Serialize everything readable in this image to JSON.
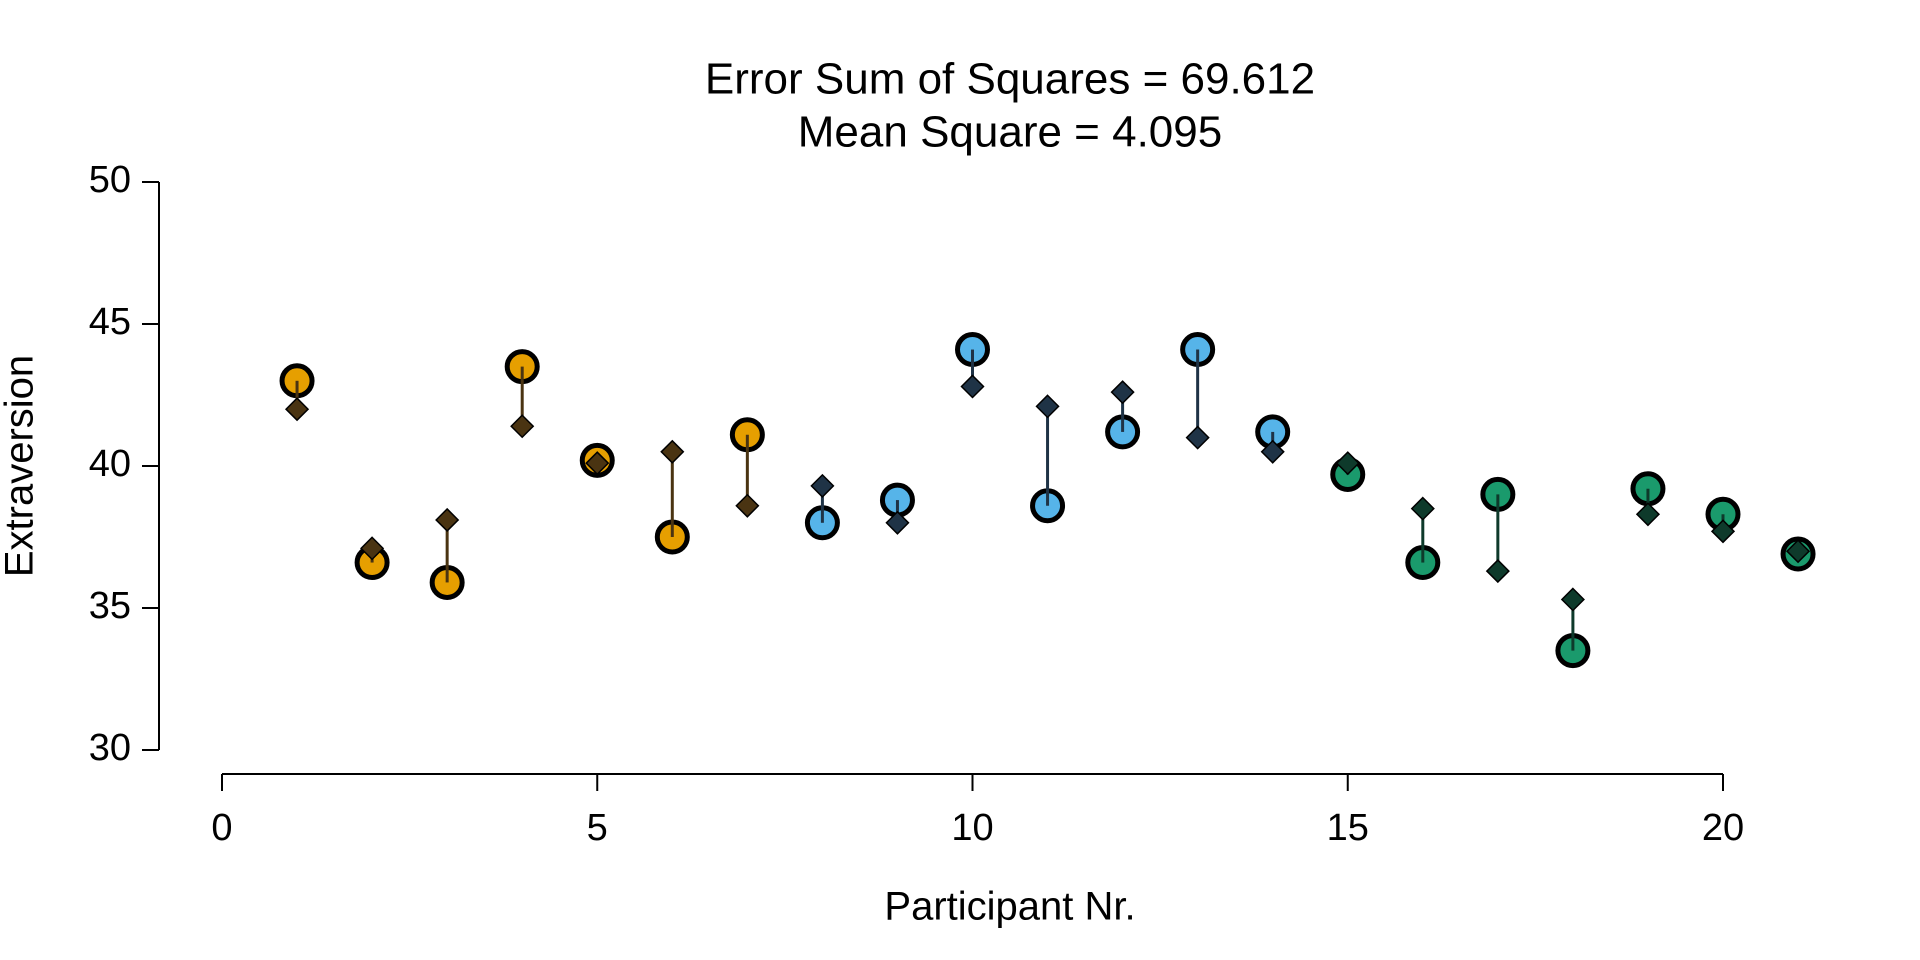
{
  "chart_data": {
    "type": "scatter",
    "title": "Error Sum of Squares = 69.612",
    "subtitle": "Mean Square = 4.095",
    "x_label": "Participant Nr.",
    "y_label": "Extraversion",
    "xlim": [
      0,
      21
    ],
    "xticks": [
      0,
      5,
      10,
      15,
      20
    ],
    "ylim": [
      30,
      50
    ],
    "yticks": [
      30,
      35,
      40,
      45,
      50
    ],
    "series": [
      {
        "color": "#E69F00",
        "marker_color": "#4a3412",
        "x": [
          1,
          2,
          3,
          4,
          5,
          6,
          7
        ],
        "values": [
          43.0,
          36.6,
          35.9,
          43.5,
          40.2,
          37.5,
          41.1
        ],
        "predicted": [
          42.0,
          37.1,
          38.1,
          41.4,
          40.1,
          40.5,
          38.6
        ]
      },
      {
        "color": "#56B4E9",
        "marker_color": "#1f3346",
        "x": [
          8,
          9,
          10,
          11,
          12,
          13,
          14
        ],
        "values": [
          38.0,
          38.8,
          44.1,
          38.6,
          41.2,
          44.1,
          41.2
        ],
        "predicted": [
          39.3,
          38.0,
          42.8,
          42.1,
          42.6,
          41.0,
          40.5
        ]
      },
      {
        "color": "#1a9a6c",
        "marker_color": "#0e3a2b",
        "x": [
          15,
          16,
          17,
          18,
          19,
          20,
          21
        ],
        "values": [
          39.7,
          36.6,
          39.0,
          33.5,
          39.2,
          38.3,
          36.9
        ],
        "predicted": [
          40.1,
          38.5,
          36.3,
          35.3,
          38.3,
          37.7,
          37.0
        ]
      }
    ]
  }
}
